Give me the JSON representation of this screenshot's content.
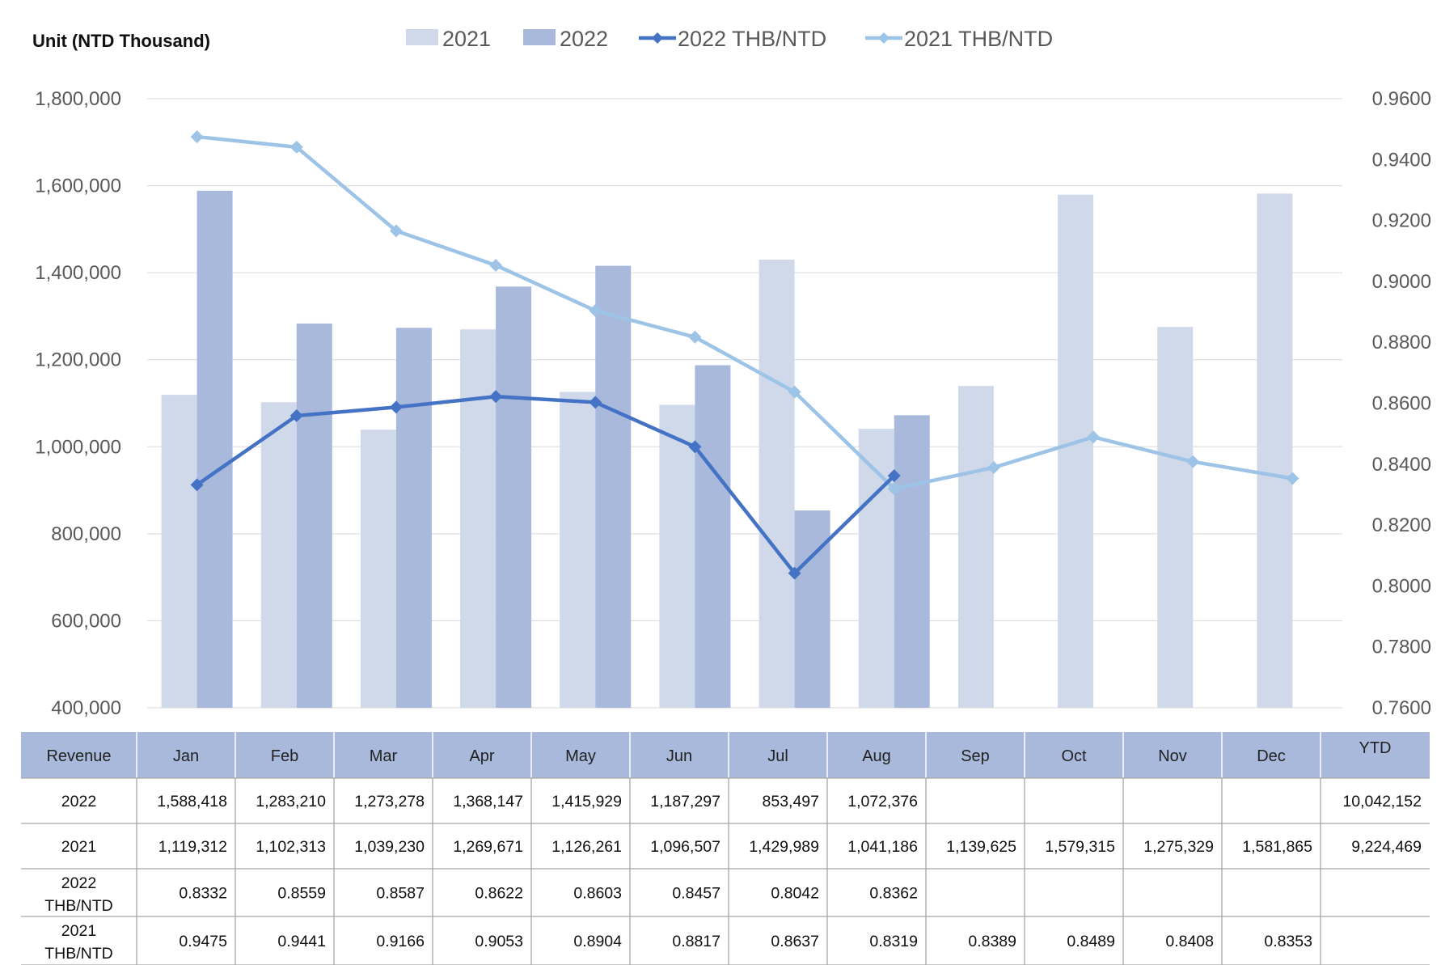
{
  "chart_data": {
    "type": "bar",
    "unit_label": "Unit (NTD Thousand)",
    "categories": [
      "Jan",
      "Feb",
      "Mar",
      "Apr",
      "May",
      "Jun",
      "Jul",
      "Aug",
      "Sep",
      "Oct",
      "Nov",
      "Dec"
    ],
    "bar_series": [
      {
        "name": "2021",
        "color": "#cfd9ea",
        "values": [
          1119312,
          1102313,
          1039230,
          1269671,
          1126261,
          1096507,
          1429989,
          1041186,
          1139625,
          1579315,
          1275329,
          1581865
        ]
      },
      {
        "name": "2022",
        "color": "#a8b9dc",
        "values": [
          1588418,
          1283210,
          1273278,
          1368147,
          1415929,
          1187297,
          853497,
          1072376,
          null,
          null,
          null,
          null
        ]
      }
    ],
    "line_series": [
      {
        "name": "2022 THB/NTD",
        "color": "#4472c4",
        "axis": "right",
        "values": [
          0.8332,
          0.8559,
          0.8587,
          0.8622,
          0.8603,
          0.8457,
          0.8042,
          0.8362,
          null,
          null,
          null,
          null
        ]
      },
      {
        "name": "2021 THB/NTD",
        "color": "#9dc3e6",
        "axis": "right",
        "values": [
          0.9475,
          0.9441,
          0.9166,
          0.9053,
          0.8904,
          0.8817,
          0.8637,
          0.8319,
          0.8389,
          0.8489,
          0.8408,
          0.8353
        ]
      }
    ],
    "left_axis": {
      "ylim": [
        400000,
        1800000
      ],
      "ticks": [
        "1,800,000",
        "1,600,000",
        "1,400,000",
        "1,200,000",
        "1,000,000",
        "800,000",
        "600,000",
        "400,000"
      ]
    },
    "right_axis": {
      "ylim": [
        0.76,
        0.96
      ],
      "ticks": [
        "0.9600",
        "0.9400",
        "0.9200",
        "0.9000",
        "0.8800",
        "0.8600",
        "0.8400",
        "0.8200",
        "0.8000",
        "0.7800",
        "0.7600"
      ]
    },
    "grid": true,
    "legend_position": "top-center",
    "table": {
      "header": [
        "Revenue",
        "Jan",
        "Feb",
        "Mar",
        "Apr",
        "May",
        "Jun",
        "Jul",
        "Aug",
        "Sep",
        "Oct",
        "Nov",
        "Dec",
        "YTD"
      ],
      "rows": [
        {
          "label": [
            "2022"
          ],
          "cells": [
            "1,588,418",
            "1,283,210",
            "1,273,278",
            "1,368,147",
            "1,415,929",
            "1,187,297",
            "853,497",
            "1,072,376",
            "",
            "",
            "",
            "",
            "10,042,152"
          ]
        },
        {
          "label": [
            "2021"
          ],
          "cells": [
            "1,119,312",
            "1,102,313",
            "1,039,230",
            "1,269,671",
            "1,126,261",
            "1,096,507",
            "1,429,989",
            "1,041,186",
            "1,139,625",
            "1,579,315",
            "1,275,329",
            "1,581,865",
            "9,224,469"
          ]
        },
        {
          "label": [
            "2022",
            "THB/NTD"
          ],
          "cells": [
            "0.8332",
            "0.8559",
            "0.8587",
            "0.8622",
            "0.8603",
            "0.8457",
            "0.8042",
            "0.8362",
            "",
            "",
            "",
            "",
            ""
          ]
        },
        {
          "label": [
            "2021",
            "THB/NTD"
          ],
          "cells": [
            "0.9475",
            "0.9441",
            "0.9166",
            "0.9053",
            "0.8904",
            "0.8817",
            "0.8637",
            "0.8319",
            "0.8389",
            "0.8489",
            "0.8408",
            "0.8353",
            ""
          ]
        }
      ]
    },
    "table_header_color": "#a8b9dc",
    "table_border_color": "#a6a6a6",
    "grid_color": "#d9d9d9"
  }
}
